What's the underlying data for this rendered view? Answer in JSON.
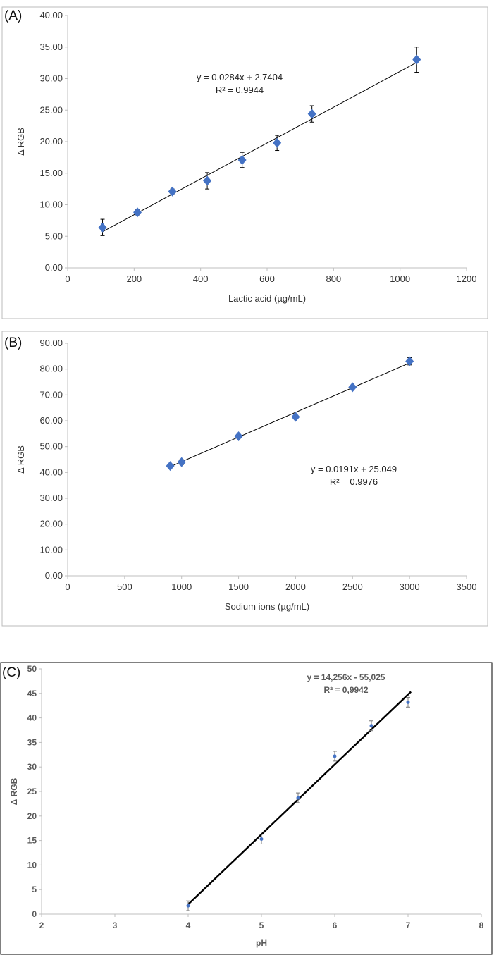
{
  "chart_data": [
    {
      "type": "scatter",
      "panel": "(A)",
      "xlabel": "Lactic acid (µg/mL)",
      "ylabel": "Δ RGB",
      "xlim": [
        0,
        1200
      ],
      "ylim": [
        0,
        40
      ],
      "xticks": [
        "0",
        "200",
        "400",
        "600",
        "800",
        "1000",
        "1200"
      ],
      "yticks": [
        "0.00",
        "5.00",
        "10.00",
        "15.00",
        "20.00",
        "25.00",
        "30.00",
        "35.00",
        "40.00"
      ],
      "x": [
        105,
        210,
        315,
        420,
        525,
        630,
        735,
        1050
      ],
      "y": [
        6.4,
        8.8,
        12.1,
        13.8,
        17.1,
        19.8,
        24.4,
        33.0
      ],
      "error": [
        1.3,
        0.4,
        0.4,
        1.3,
        1.2,
        1.2,
        1.3,
        2.0
      ],
      "trendline": {
        "slope": 0.0284,
        "intercept": 2.7404,
        "x_range": [
          105,
          1050
        ]
      },
      "equation": "y = 0.0284x + 2.7404",
      "r2": "R² = 0.9944",
      "marker": "diamond",
      "color": "#4472C4"
    },
    {
      "type": "scatter",
      "panel": "(B)",
      "xlabel": "Sodium ions (µg/mL)",
      "ylabel": "Δ RGB",
      "xlim": [
        0,
        3500
      ],
      "ylim": [
        0,
        90
      ],
      "xticks": [
        "0",
        "500",
        "1000",
        "1500",
        "2000",
        "2500",
        "3000",
        "3500"
      ],
      "yticks": [
        "0.00",
        "10.00",
        "20.00",
        "30.00",
        "40.00",
        "50.00",
        "60.00",
        "70.00",
        "80.00",
        "90.00"
      ],
      "x": [
        900,
        1000,
        1500,
        2000,
        2500,
        3000
      ],
      "y": [
        42.5,
        44.0,
        54.0,
        61.5,
        73.0,
        83.0
      ],
      "error": [
        0.6,
        1.0,
        0.6,
        0.6,
        0.6,
        1.4
      ],
      "trendline": {
        "slope": 0.0191,
        "intercept": 25.049,
        "x_range": [
          900,
          3000
        ]
      },
      "equation": "y = 0.0191x + 25.049",
      "r2": "R² = 0.9976",
      "marker": "diamond",
      "color": "#4472C4"
    },
    {
      "type": "scatter",
      "panel": "(C)",
      "xlabel": "pH",
      "ylabel": "Δ RGB",
      "xlim": [
        2,
        8
      ],
      "ylim": [
        0,
        50
      ],
      "xticks": [
        "2",
        "3",
        "4",
        "5",
        "6",
        "7",
        "8"
      ],
      "yticks": [
        "0",
        "5",
        "10",
        "15",
        "20",
        "25",
        "30",
        "35",
        "40",
        "45",
        "50"
      ],
      "x": [
        4,
        5,
        5.5,
        6,
        6.5,
        7
      ],
      "y": [
        1.7,
        15.3,
        23.7,
        32.2,
        38.4,
        43.2
      ],
      "error": [
        1.0,
        1.0,
        1.0,
        1.0,
        1.0,
        1.0
      ],
      "trendline": {
        "slope": 14.256,
        "intercept": -55.025,
        "x_range": [
          4,
          7.04
        ]
      },
      "equation": "y = 14,256x - 55,025",
      "r2": "R² = 0,9942",
      "marker": "circle",
      "color": "#4472C4"
    }
  ]
}
